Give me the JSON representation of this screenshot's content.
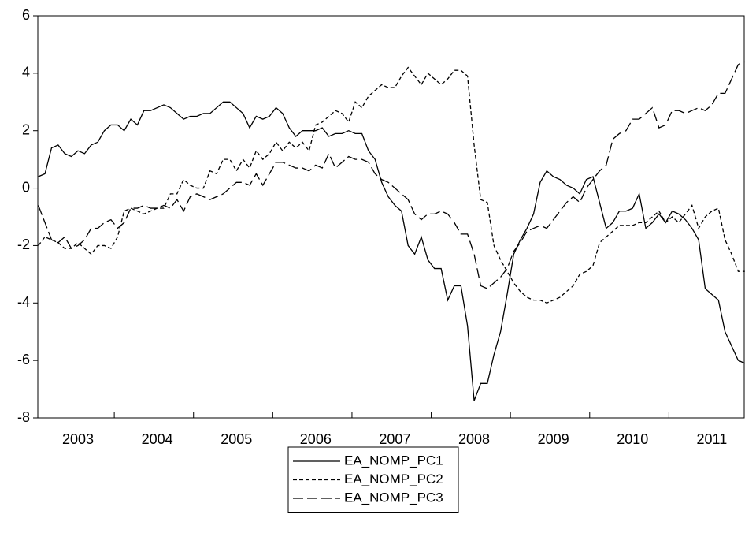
{
  "chart_data": {
    "type": "line",
    "categories": [
      null,
      null,
      null,
      null,
      null,
      null,
      "2003",
      null,
      null,
      null,
      null,
      null,
      null,
      null,
      null,
      null,
      null,
      null,
      "2004",
      null,
      null,
      null,
      null,
      null,
      null,
      null,
      null,
      null,
      null,
      null,
      "2005",
      null,
      null,
      null,
      null,
      null,
      null,
      null,
      null,
      null,
      null,
      null,
      "2006",
      null,
      null,
      null,
      null,
      null,
      null,
      null,
      null,
      null,
      null,
      null,
      "2007",
      null,
      null,
      null,
      null,
      null,
      null,
      null,
      null,
      null,
      null,
      null,
      "2008",
      null,
      null,
      null,
      null,
      null,
      null,
      null,
      null,
      null,
      null,
      null,
      "2009",
      null,
      null,
      null,
      null,
      null,
      null,
      null,
      null,
      null,
      null,
      null,
      "2010",
      null,
      null,
      null,
      null,
      null,
      null,
      null,
      null,
      null,
      null,
      null,
      "2011",
      null,
      null,
      null,
      null,
      null
    ],
    "series": [
      {
        "name": "EA_NOMP_PC1",
        "color": "#000000",
        "linestyle": "solid",
        "values": [
          0.4,
          0.5,
          1.4,
          1.5,
          1.2,
          1.1,
          1.3,
          1.2,
          1.5,
          1.6,
          2.0,
          2.2,
          2.2,
          2.0,
          2.4,
          2.2,
          2.7,
          2.7,
          2.8,
          2.9,
          2.8,
          2.6,
          2.4,
          2.5,
          2.5,
          2.6,
          2.6,
          2.8,
          3.0,
          3.0,
          2.8,
          2.6,
          2.1,
          2.5,
          2.4,
          2.5,
          2.8,
          2.6,
          2.1,
          1.8,
          2.0,
          2.0,
          2.0,
          2.1,
          1.8,
          1.9,
          1.9,
          2.0,
          1.9,
          1.9,
          1.3,
          1.0,
          0.2,
          -0.3,
          -0.6,
          -0.8,
          -2.0,
          -2.3,
          -1.7,
          -2.5,
          -2.8,
          -2.8,
          -3.9,
          -3.4,
          -3.4,
          -4.8,
          -7.4,
          -6.8,
          -6.8,
          -5.8,
          -5.0,
          -3.7,
          -2.3,
          -1.8,
          -1.4,
          -0.9,
          0.2,
          0.6,
          0.4,
          0.3,
          0.1,
          0.0,
          -0.2,
          0.3,
          0.4,
          -0.5,
          -1.4,
          -1.2,
          -0.8,
          -0.8,
          -0.7,
          -0.2,
          -1.4,
          -1.2,
          -0.9,
          -1.2,
          -0.8,
          -0.9,
          -1.1,
          -1.4,
          -1.8,
          -3.5,
          -3.7,
          -3.9,
          -5.0,
          -5.5,
          -6.0,
          -6.1
        ]
      },
      {
        "name": "EA_NOMP_PC2",
        "color": "#000000",
        "linestyle": "short-dash",
        "values": [
          -2.0,
          -1.7,
          -1.8,
          -1.9,
          -2.1,
          -2.1,
          -1.9,
          -2.1,
          -2.3,
          -2.0,
          -2.0,
          -2.1,
          -1.7,
          -0.8,
          -0.7,
          -0.8,
          -0.9,
          -0.8,
          -0.7,
          -0.7,
          -0.2,
          -0.2,
          0.3,
          0.1,
          0.0,
          0.0,
          0.6,
          0.5,
          1.0,
          1.0,
          0.6,
          1.0,
          0.7,
          1.3,
          1.0,
          1.2,
          1.6,
          1.3,
          1.6,
          1.4,
          1.6,
          1.3,
          2.2,
          2.3,
          2.5,
          2.7,
          2.6,
          2.3,
          3.0,
          2.8,
          3.2,
          3.4,
          3.6,
          3.5,
          3.5,
          3.9,
          4.2,
          3.9,
          3.6,
          4.0,
          3.8,
          3.6,
          3.8,
          4.1,
          4.1,
          3.9,
          1.5,
          -0.4,
          -0.5,
          -2.0,
          -2.5,
          -2.9,
          -3.3,
          -3.6,
          -3.8,
          -3.9,
          -3.9,
          -4.0,
          -3.9,
          -3.8,
          -3.6,
          -3.4,
          -3.0,
          -2.9,
          -2.7,
          -1.9,
          -1.7,
          -1.5,
          -1.3,
          -1.3,
          -1.3,
          -1.2,
          -1.2,
          -1.0,
          -0.8,
          -1.2,
          -1.0,
          -1.2,
          -0.9,
          -0.6,
          -1.4,
          -1.0,
          -0.8,
          -0.7,
          -1.8,
          -2.3,
          -2.9,
          -2.9
        ]
      },
      {
        "name": "EA_NOMP_PC3",
        "color": "#000000",
        "linestyle": "long-dash",
        "values": [
          -0.6,
          -1.2,
          -1.8,
          -1.9,
          -1.7,
          -2.1,
          -2.0,
          -1.8,
          -1.4,
          -1.4,
          -1.2,
          -1.1,
          -1.4,
          -1.2,
          -0.7,
          -0.7,
          -0.6,
          -0.7,
          -0.7,
          -0.6,
          -0.7,
          -0.4,
          -0.8,
          -0.3,
          -0.2,
          -0.3,
          -0.4,
          -0.3,
          -0.2,
          0.0,
          0.2,
          0.2,
          0.1,
          0.5,
          0.1,
          0.5,
          0.9,
          0.9,
          0.8,
          0.7,
          0.7,
          0.6,
          0.8,
          0.7,
          1.2,
          0.7,
          0.9,
          1.1,
          1.0,
          1.0,
          0.9,
          0.5,
          0.3,
          0.2,
          0.0,
          -0.2,
          -0.4,
          -0.9,
          -1.1,
          -0.9,
          -0.9,
          -0.8,
          -0.9,
          -1.2,
          -1.6,
          -1.6,
          -2.3,
          -3.4,
          -3.5,
          -3.3,
          -3.1,
          -2.8,
          -2.2,
          -1.9,
          -1.5,
          -1.4,
          -1.3,
          -1.4,
          -1.1,
          -0.8,
          -0.5,
          -0.3,
          -0.5,
          0.0,
          0.3,
          0.6,
          0.8,
          1.7,
          1.9,
          2.0,
          2.4,
          2.4,
          2.6,
          2.8,
          2.1,
          2.2,
          2.7,
          2.7,
          2.6,
          2.7,
          2.8,
          2.7,
          2.9,
          3.3,
          3.3,
          3.8,
          4.3,
          4.4
        ]
      }
    ],
    "ylim": [
      -8,
      6
    ],
    "yticks": [
      -8,
      -6,
      -4,
      -2,
      0,
      2,
      4,
      6
    ],
    "grid": false,
    "legend": "bottom"
  }
}
